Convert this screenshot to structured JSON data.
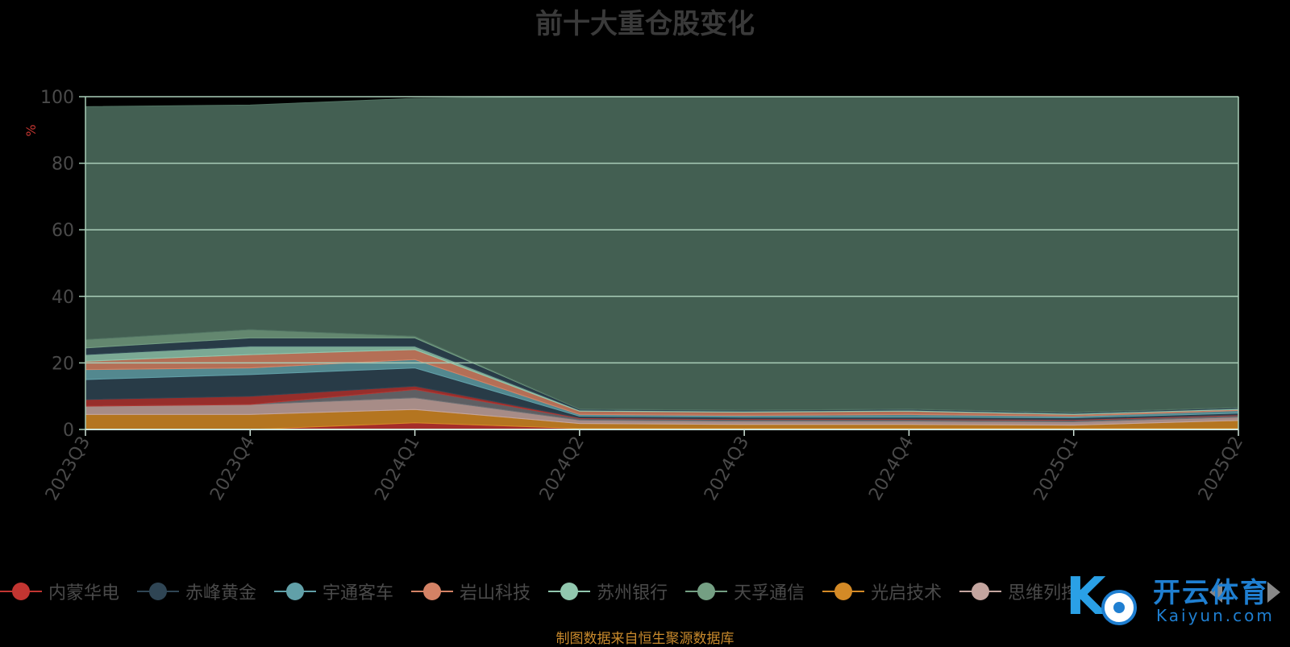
{
  "chart_data": {
    "type": "area",
    "stacked": true,
    "title": "前十大重仓股变化",
    "ylabel": "%",
    "ylim": [
      0,
      100
    ],
    "yticks": [
      0,
      20,
      40,
      60,
      80,
      100
    ],
    "categories": [
      "2023Q3",
      "2023Q4",
      "2024Q1",
      "2024Q2",
      "2024Q3",
      "2024Q4",
      "2025Q1",
      "2025Q2"
    ],
    "series": [
      {
        "name": "内蒙华电",
        "color": "#c23531",
        "values": [
          0,
          0,
          2,
          0.3,
          0.3,
          0.3,
          0.3,
          0.3
        ]
      },
      {
        "name": "光启技术",
        "color": "#d48a26",
        "values": [
          4.5,
          4.5,
          4,
          1.5,
          1.2,
          1.2,
          1,
          2.4
        ]
      },
      {
        "name": "思维列控",
        "color": "#c4a59f",
        "values": [
          2.5,
          3,
          3.5,
          1,
          1,
          1,
          1,
          1
        ]
      },
      {
        "name": "",
        "color": "#6e7074",
        "values": [
          0,
          0,
          2.5,
          0.5,
          0.5,
          0.5,
          0.5,
          0.5
        ]
      },
      {
        "name": "",
        "color": "#b13632",
        "values": [
          2,
          2.5,
          1,
          0.2,
          0.2,
          0.2,
          0.2,
          0.2
        ]
      },
      {
        "name": "赤峰黄金",
        "color": "#2f4554",
        "values": [
          6,
          6.5,
          5.5,
          0.5,
          0.5,
          0.5,
          0.5,
          0.5
        ]
      },
      {
        "name": "宇通客车",
        "color": "#61a0a8",
        "values": [
          3,
          2,
          2.5,
          0.5,
          0.5,
          0.8,
          0.5,
          0.8
        ]
      },
      {
        "name": "岩山科技",
        "color": "#d48265",
        "values": [
          2.5,
          4,
          3,
          1,
          1,
          1,
          0.5,
          0.3
        ]
      },
      {
        "name": "苏州银行",
        "color": "#91c7ae",
        "values": [
          2,
          2.5,
          1,
          0.3,
          0.3,
          0.3,
          0.3,
          0.3
        ]
      },
      {
        "name": "",
        "color": "#2f4554",
        "values": [
          2,
          2.5,
          2.5,
          0.3,
          0.3,
          0.3,
          0.3,
          0.3
        ]
      },
      {
        "name": "天孚通信",
        "color": "#749f83",
        "values": [
          2.5,
          2.5,
          0.5,
          0,
          0,
          0,
          0,
          0
        ]
      },
      {
        "name": "",
        "color": "#4f7060",
        "values": [
          70,
          67.5,
          71.5,
          93.9,
          94.2,
          93.9,
          94.9,
          93.4
        ]
      }
    ]
  },
  "legend": [
    {
      "name": "内蒙华电",
      "color": "#c23531"
    },
    {
      "name": "赤峰黄金",
      "color": "#2f4554"
    },
    {
      "name": "宇通客车",
      "color": "#61a0a8"
    },
    {
      "name": "岩山科技",
      "color": "#d48265"
    },
    {
      "name": "苏州银行",
      "color": "#91c7ae"
    },
    {
      "name": "天孚通信",
      "color": "#749f83"
    },
    {
      "name": "光启技术",
      "color": "#d48a26"
    },
    {
      "name": "思维列控",
      "color": "#c4a59f"
    }
  ],
  "source": "制图数据来自恒生聚源数据库",
  "watermark": {
    "text": "开云体育",
    "sub": "Kaiyun.com"
  }
}
